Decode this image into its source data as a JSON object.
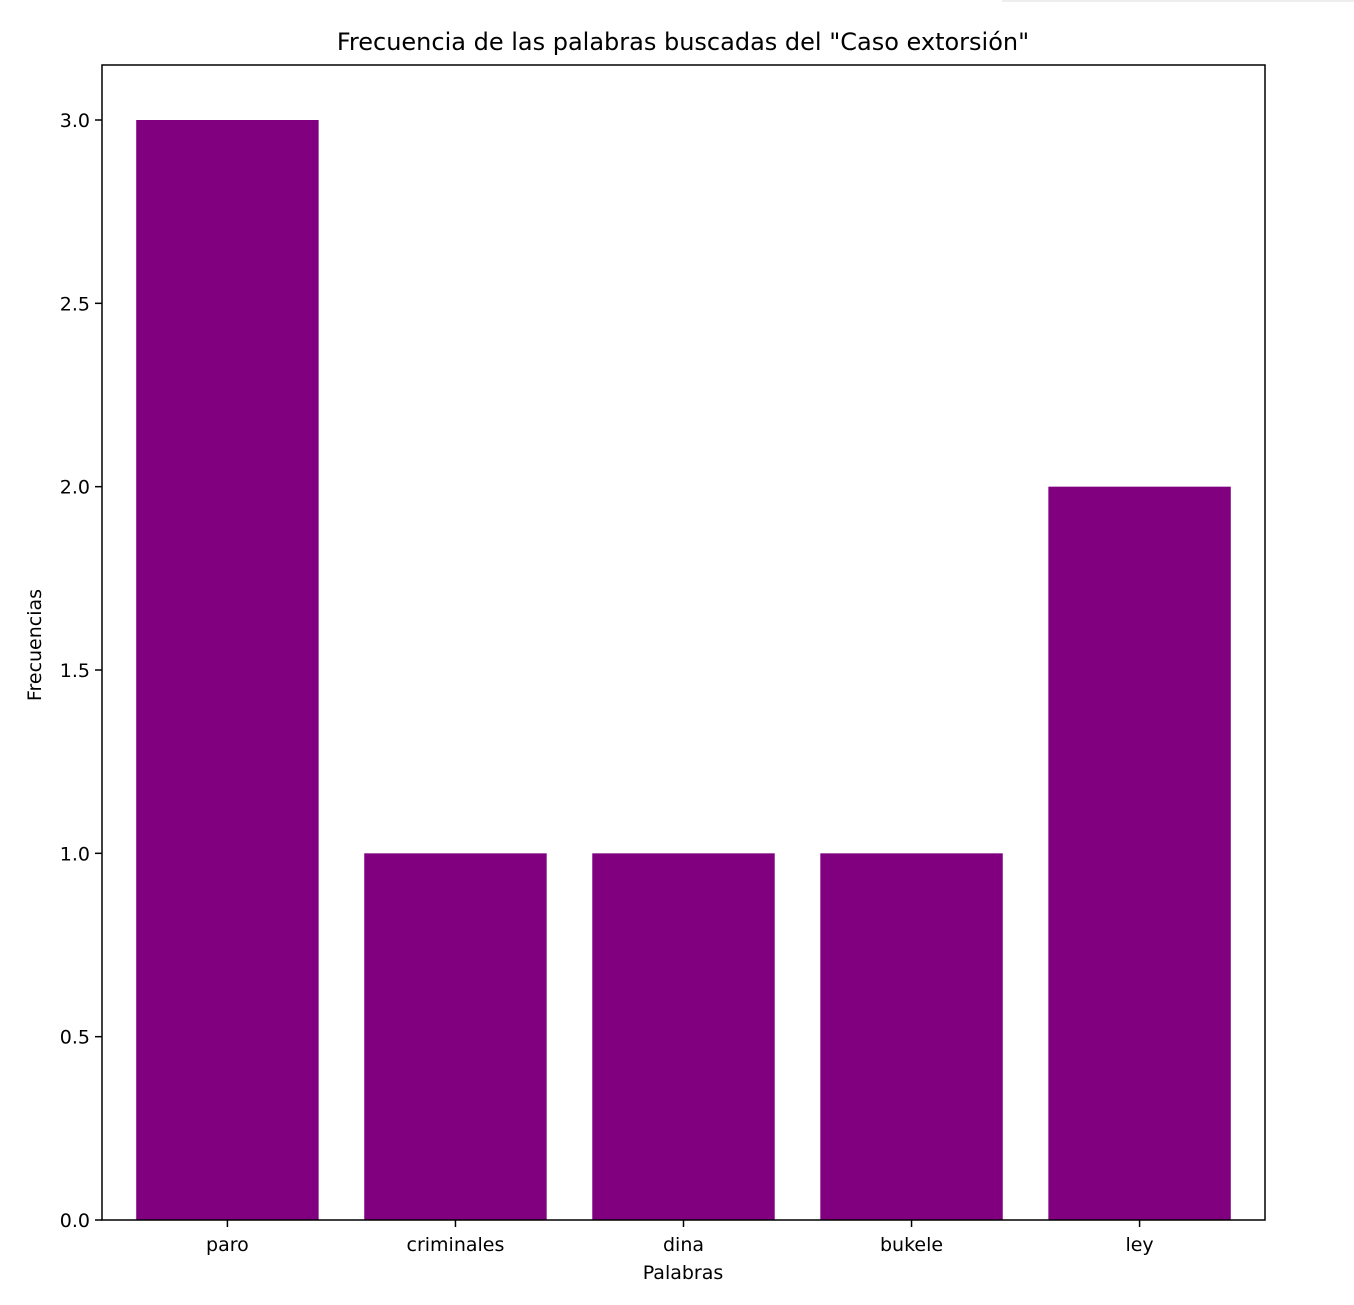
{
  "chart_data": {
    "type": "bar",
    "title": "Frecuencia de las palabras buscadas del \"Caso extorsión\"",
    "xlabel": "Palabras",
    "ylabel": "Frecuencias",
    "categories": [
      "paro",
      "criminales",
      "dina",
      "bukele",
      "ley"
    ],
    "values": [
      3,
      1,
      1,
      1,
      2
    ],
    "ylim": [
      0,
      3.15
    ],
    "yticks": [
      "0.0",
      "0.5",
      "1.0",
      "1.5",
      "2.0",
      "2.5",
      "3.0"
    ],
    "bar_color": "#800080",
    "grid": false,
    "legend": false
  }
}
